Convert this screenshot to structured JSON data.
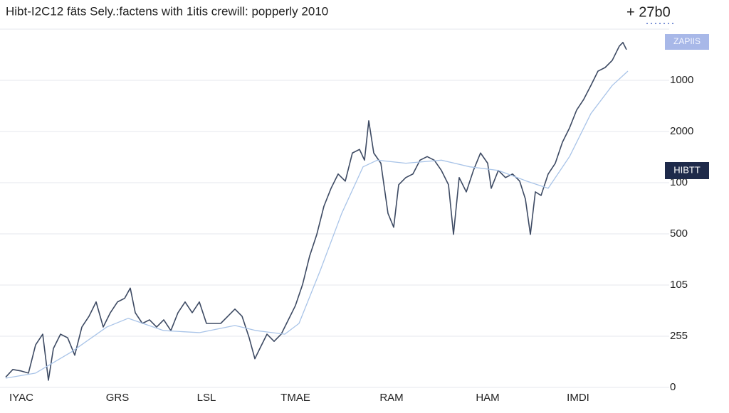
{
  "chart_data": {
    "type": "line",
    "title": "Hibt-I2C12 fäts Sely.:factens with 1itis crewill: popperly 2010",
    "header_value": "+ 27b0",
    "button": "ZAPIIS",
    "price_tag": "HIBTT",
    "xlim": [
      0,
      940
    ],
    "xticks": [
      {
        "value": 30,
        "label": "IYAC"
      },
      {
        "value": 165,
        "label": "GRS"
      },
      {
        "value": 290,
        "label": "LSL"
      },
      {
        "value": 415,
        "label": "TMAE"
      },
      {
        "value": 550,
        "label": "RAM"
      },
      {
        "value": 685,
        "label": "HAM"
      },
      {
        "value": 812,
        "label": "IMDI"
      }
    ],
    "ylim": [
      0,
      7
    ],
    "yticks": [
      {
        "value": 0,
        "label": "0"
      },
      {
        "value": 1,
        "label": "255"
      },
      {
        "value": 2,
        "label": "105"
      },
      {
        "value": 3,
        "label": "500"
      },
      {
        "value": 4,
        "label": "100"
      },
      {
        "value": 5,
        "label": "2000"
      },
      {
        "value": 6,
        "label": "1000"
      }
    ],
    "grid": true,
    "series": [
      {
        "color": "#3d4a63",
        "x": [
          8,
          18,
          30,
          40,
          50,
          60,
          68,
          75,
          85,
          95,
          105,
          115,
          125,
          135,
          145,
          155,
          165,
          175,
          183,
          190,
          200,
          210,
          220,
          230,
          240,
          250,
          260,
          270,
          280,
          290,
          300,
          310,
          320,
          330,
          340,
          350,
          358,
          365,
          375,
          385,
          395,
          405,
          415,
          425,
          435,
          445,
          455,
          465,
          475,
          485,
          495,
          505,
          512,
          518,
          525,
          535,
          545,
          553,
          560,
          570,
          580,
          590,
          600,
          610,
          620,
          630,
          637,
          645,
          655,
          665,
          675,
          685,
          690,
          700,
          710,
          720,
          730,
          738,
          745,
          752,
          760,
          770,
          780,
          790,
          800,
          810,
          820,
          830,
          840,
          850,
          860,
          870,
          875,
          880
        ],
        "values": [
          0.2,
          0.35,
          0.32,
          0.28,
          0.83,
          1.04,
          0.14,
          0.76,
          1.04,
          0.97,
          0.63,
          1.18,
          1.39,
          1.67,
          1.18,
          1.46,
          1.67,
          1.74,
          1.94,
          1.46,
          1.25,
          1.32,
          1.18,
          1.32,
          1.11,
          1.46,
          1.67,
          1.46,
          1.67,
          1.25,
          1.25,
          1.25,
          1.39,
          1.53,
          1.39,
          0.97,
          0.56,
          0.76,
          1.04,
          0.9,
          1.04,
          1.32,
          1.6,
          2.01,
          2.57,
          2.99,
          3.54,
          3.89,
          4.17,
          4.03,
          4.58,
          4.65,
          4.44,
          5.21,
          4.58,
          4.38,
          3.4,
          3.13,
          3.96,
          4.1,
          4.17,
          4.44,
          4.51,
          4.44,
          4.24,
          3.96,
          2.99,
          4.1,
          3.82,
          4.24,
          4.58,
          4.38,
          3.89,
          4.24,
          4.1,
          4.17,
          4.03,
          3.68,
          2.99,
          3.82,
          3.75,
          4.17,
          4.38,
          4.79,
          5.07,
          5.42,
          5.63,
          5.9,
          6.18,
          6.25,
          6.39,
          6.67,
          6.74,
          6.6
        ]
      },
      {
        "color": "#a9c4e8",
        "x": [
          8,
          50,
          100,
          150,
          180,
          230,
          280,
          330,
          360,
          400,
          420,
          450,
          480,
          510,
          530,
          570,
          620,
          660,
          700,
          740,
          770,
          800,
          830,
          860,
          882
        ],
        "values": [
          0.18,
          0.28,
          0.69,
          1.18,
          1.35,
          1.11,
          1.07,
          1.21,
          1.11,
          1.04,
          1.25,
          2.29,
          3.4,
          4.31,
          4.44,
          4.38,
          4.44,
          4.31,
          4.24,
          4.03,
          3.89,
          4.51,
          5.35,
          5.9,
          6.18
        ]
      }
    ]
  }
}
